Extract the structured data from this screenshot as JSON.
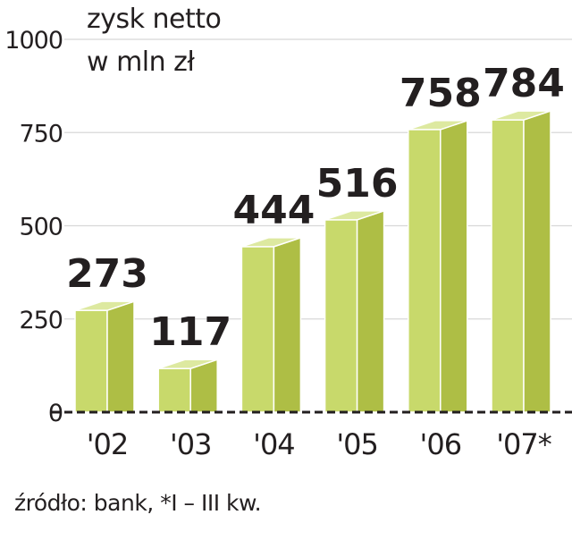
{
  "chart_data": {
    "type": "bar",
    "title_lines": [
      "zysk netto",
      "w mln zł"
    ],
    "categories": [
      "'02",
      "'03",
      "'04",
      "'05",
      "'06",
      "'07*"
    ],
    "values": [
      273,
      117,
      444,
      516,
      758,
      784
    ],
    "data_labels": [
      "273",
      "117",
      "444",
      "516",
      "758",
      "784"
    ],
    "y_ticks": [
      "0",
      "250",
      "500",
      "750",
      "1000"
    ],
    "ylim": [
      0,
      1000
    ],
    "grid": true,
    "colors": {
      "front": "#c8d96b",
      "side": "#aebe45",
      "top": "#dde9a0",
      "edge": "#ffffff",
      "grid": "#d8d8d8",
      "axis": "#231f20"
    }
  },
  "source": "źródło: bank, *I – III kw."
}
